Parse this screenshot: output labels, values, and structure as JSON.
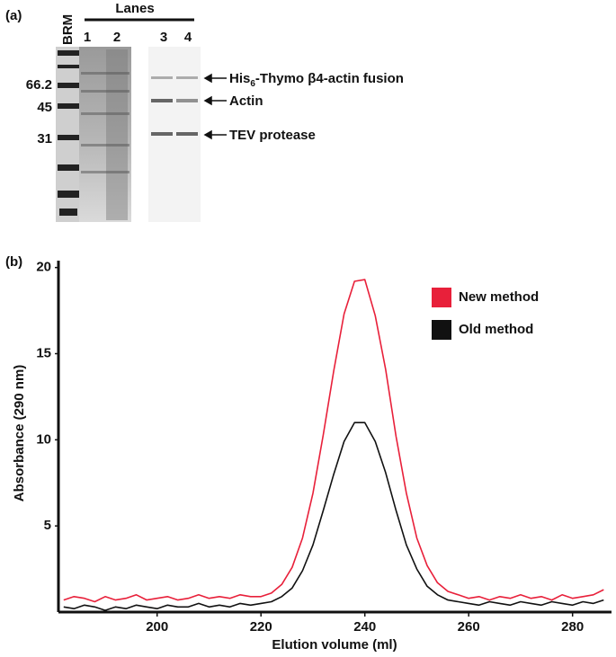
{
  "gel": {
    "panel": "(a)",
    "lanes_title": "Lanes",
    "marker_lane": "BRM",
    "lanes": [
      "1",
      "2",
      "3",
      "4"
    ],
    "markers": [
      66.2,
      45,
      31
    ],
    "band_labels": [
      {
        "parts": [
          "His",
          "6",
          "-Thymo β4-actin fusion"
        ]
      },
      "Actin",
      "TEV protease"
    ]
  },
  "chart_data": {
    "type": "line",
    "panel": "(b)",
    "x_label": "Elution volume (ml)",
    "y_label": "Absorbance (290 nm)",
    "x": [
      182,
      184,
      186,
      188,
      190,
      192,
      194,
      196,
      198,
      200,
      202,
      204,
      206,
      208,
      210,
      212,
      214,
      216,
      218,
      220,
      222,
      224,
      226,
      228,
      230,
      232,
      234,
      236,
      238,
      240,
      242,
      244,
      246,
      248,
      250,
      252,
      254,
      256,
      258,
      260,
      262,
      264,
      266,
      268,
      270,
      272,
      274,
      276,
      278,
      280,
      282,
      284,
      286
    ],
    "series": [
      {
        "name": "New method",
        "color": "#e8203a",
        "values": [
          0.7,
          0.9,
          0.8,
          0.6,
          0.9,
          0.7,
          0.8,
          1.0,
          0.7,
          0.8,
          0.9,
          0.7,
          0.8,
          1.0,
          0.8,
          0.9,
          0.8,
          1.0,
          0.9,
          0.9,
          1.1,
          1.6,
          2.6,
          4.3,
          6.9,
          10.3,
          14.0,
          17.3,
          19.2,
          19.3,
          17.2,
          14.1,
          10.2,
          6.9,
          4.3,
          2.7,
          1.7,
          1.2,
          1.0,
          0.8,
          0.9,
          0.7,
          0.9,
          0.8,
          1.0,
          0.8,
          0.9,
          0.7,
          1.0,
          0.8,
          0.9,
          1.0,
          1.3
        ]
      },
      {
        "name": "Old method",
        "color": "#111111",
        "values": [
          0.3,
          0.2,
          0.4,
          0.3,
          0.1,
          0.3,
          0.2,
          0.4,
          0.3,
          0.2,
          0.4,
          0.3,
          0.3,
          0.5,
          0.3,
          0.4,
          0.3,
          0.5,
          0.4,
          0.5,
          0.6,
          0.9,
          1.4,
          2.4,
          3.9,
          5.9,
          8.0,
          9.9,
          11.0,
          11.0,
          9.9,
          8.1,
          5.9,
          3.9,
          2.5,
          1.5,
          1.0,
          0.7,
          0.6,
          0.5,
          0.4,
          0.6,
          0.5,
          0.4,
          0.6,
          0.5,
          0.4,
          0.6,
          0.5,
          0.4,
          0.6,
          0.5,
          0.7
        ]
      }
    ],
    "xlim": [
      181,
      287.5
    ],
    "ylim": [
      0,
      20.4
    ],
    "xticks": [
      200,
      220,
      240,
      260,
      280
    ],
    "yticks": [
      5,
      10,
      15,
      20
    ],
    "legend": "upper right"
  }
}
